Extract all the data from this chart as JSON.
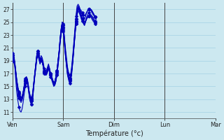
{
  "xlabel": "Température (°c)",
  "bg_color": "#cce8f0",
  "line_color": "#0000bb",
  "markersize": 2.5,
  "linewidth": 0.8,
  "ylim": [
    10,
    28
  ],
  "yticks": [
    11,
    13,
    15,
    17,
    19,
    21,
    23,
    25,
    27
  ],
  "day_labels": [
    "Ven",
    "Sam",
    "Dim",
    "Lun",
    "Mar"
  ],
  "day_positions": [
    0,
    48,
    96,
    144,
    192
  ],
  "grid_color": "#99cce0",
  "vline_color": "#444444",
  "n_points": 240,
  "series": [
    [
      19.5,
      19.3,
      18.8,
      17.5,
      16.0,
      15.0,
      14.2,
      13.5,
      13.2,
      13.5,
      14.0,
      15.0,
      16.0,
      16.5,
      16.0,
      15.0,
      14.0,
      13.5,
      13.2,
      14.0,
      15.5,
      17.0,
      18.5,
      20.0,
      20.5,
      19.8,
      19.0,
      19.5,
      19.0,
      18.5,
      17.5,
      17.0,
      17.0,
      17.5,
      18.0,
      17.5,
      17.0,
      16.5,
      16.0,
      15.5,
      15.5,
      16.0,
      17.0,
      18.5,
      20.0,
      22.0,
      23.5,
      24.5,
      24.0,
      22.0,
      20.0,
      18.5,
      17.0,
      16.5,
      16.0,
      16.2,
      17.5,
      19.0,
      21.0,
      23.0,
      25.0,
      26.5,
      27.2,
      27.0,
      26.5,
      26.0,
      25.5,
      25.0,
      24.8,
      25.2,
      25.8,
      26.2,
      26.5,
      26.8,
      27.0,
      26.8,
      26.5,
      26.2,
      25.8,
      25.5
    ],
    [
      19.2,
      19.0,
      18.5,
      17.2,
      15.8,
      14.8,
      14.0,
      13.2,
      12.8,
      13.0,
      13.8,
      14.8,
      15.8,
      16.2,
      15.8,
      14.8,
      13.8,
      13.2,
      12.8,
      13.5,
      15.0,
      16.8,
      18.2,
      19.8,
      20.2,
      19.5,
      18.8,
      19.2,
      18.8,
      18.2,
      17.2,
      16.8,
      16.8,
      17.2,
      17.8,
      17.2,
      16.8,
      16.2,
      15.8,
      15.2,
      15.2,
      15.8,
      16.8,
      18.2,
      19.8,
      21.8,
      23.2,
      24.2,
      23.8,
      21.8,
      19.8,
      18.2,
      16.8,
      16.2,
      15.8,
      16.0,
      17.2,
      18.8,
      20.8,
      22.8,
      24.8,
      26.2,
      27.0,
      26.8,
      26.2,
      25.8,
      25.2,
      24.8,
      24.5,
      25.0,
      25.5,
      25.8,
      26.0,
      26.2,
      26.2,
      26.0,
      25.8,
      25.5,
      25.2,
      25.0
    ],
    [
      20.0,
      19.8,
      18.5,
      16.0,
      14.0,
      12.8,
      11.8,
      11.2,
      11.0,
      11.5,
      12.5,
      13.8,
      15.0,
      15.8,
      15.5,
      14.5,
      13.2,
      12.5,
      12.2,
      13.0,
      14.8,
      16.5,
      18.0,
      19.5,
      20.0,
      19.2,
      18.5,
      19.0,
      18.8,
      18.2,
      17.2,
      17.0,
      17.0,
      17.5,
      18.0,
      17.5,
      17.0,
      16.5,
      16.0,
      15.5,
      15.8,
      16.5,
      17.5,
      19.0,
      20.5,
      22.5,
      24.0,
      25.0,
      24.5,
      22.5,
      20.5,
      19.0,
      17.5,
      16.8,
      16.2,
      16.5,
      17.8,
      19.5,
      21.5,
      23.5,
      25.5,
      27.0,
      27.5,
      27.2,
      26.8,
      26.5,
      26.2,
      25.8,
      25.5,
      26.0,
      26.5,
      26.8,
      27.0,
      27.2,
      27.0,
      26.8,
      26.5,
      26.2,
      25.8,
      25.5
    ],
    [
      19.8,
      19.5,
      18.8,
      17.2,
      15.5,
      14.2,
      13.5,
      13.0,
      12.8,
      13.2,
      14.0,
      15.0,
      15.8,
      16.2,
      15.8,
      14.8,
      13.5,
      13.0,
      12.8,
      13.5,
      15.2,
      16.8,
      18.2,
      19.8,
      20.2,
      19.5,
      18.8,
      19.2,
      18.8,
      18.2,
      17.2,
      16.8,
      17.0,
      17.5,
      18.0,
      17.5,
      16.8,
      16.2,
      15.8,
      15.2,
      15.5,
      16.2,
      17.2,
      18.8,
      20.2,
      22.2,
      23.8,
      24.8,
      24.2,
      22.2,
      20.2,
      18.8,
      17.2,
      16.5,
      16.0,
      16.2,
      17.5,
      19.2,
      21.2,
      23.2,
      25.2,
      26.8,
      27.2,
      27.0,
      26.5,
      26.0,
      25.5,
      25.0,
      24.8,
      25.2,
      25.5,
      25.8,
      26.0,
      26.2,
      26.0,
      25.8,
      25.5,
      25.2,
      25.0,
      24.8
    ],
    [
      19.0,
      18.8,
      18.2,
      16.8,
      15.2,
      14.0,
      13.2,
      12.8,
      12.5,
      12.8,
      13.5,
      14.5,
      15.5,
      16.0,
      15.5,
      14.5,
      13.2,
      12.5,
      12.2,
      13.0,
      14.8,
      16.5,
      17.8,
      19.2,
      19.8,
      19.2,
      18.5,
      19.0,
      18.8,
      18.0,
      17.0,
      16.8,
      16.8,
      17.2,
      17.8,
      17.2,
      16.5,
      16.0,
      15.5,
      15.0,
      15.2,
      15.8,
      16.8,
      18.2,
      19.8,
      21.8,
      23.2,
      24.2,
      23.5,
      21.5,
      19.8,
      18.2,
      16.8,
      16.0,
      15.5,
      15.8,
      17.0,
      18.8,
      20.8,
      22.8,
      24.8,
      26.0,
      26.8,
      26.5,
      26.0,
      25.5,
      25.2,
      24.8,
      24.5,
      25.0,
      25.5,
      25.8,
      26.0,
      26.0,
      25.8,
      25.5,
      25.2,
      25.0,
      24.8,
      24.5
    ],
    [
      20.2,
      20.0,
      19.0,
      17.5,
      16.0,
      14.8,
      14.0,
      13.5,
      13.2,
      13.5,
      14.2,
      15.2,
      16.2,
      16.5,
      16.2,
      15.2,
      13.8,
      13.2,
      13.0,
      13.8,
      15.5,
      17.0,
      18.5,
      20.0,
      20.5,
      19.8,
      19.2,
      19.8,
      19.5,
      18.8,
      17.8,
      17.5,
      17.5,
      18.0,
      18.5,
      17.8,
      17.0,
      16.5,
      16.0,
      15.5,
      15.8,
      16.5,
      17.5,
      19.0,
      20.5,
      22.5,
      24.0,
      25.0,
      24.8,
      22.8,
      21.0,
      19.5,
      18.0,
      17.2,
      16.8,
      17.0,
      18.2,
      20.0,
      22.0,
      24.0,
      26.0,
      27.5,
      27.8,
      27.5,
      27.0,
      26.8,
      26.5,
      26.2,
      26.0,
      26.2,
      26.5,
      26.8,
      27.0,
      27.0,
      26.8,
      26.5,
      26.2,
      26.0,
      25.8,
      25.5
    ],
    [
      19.5,
      19.2,
      18.5,
      17.0,
      15.5,
      14.2,
      13.5,
      13.0,
      12.8,
      13.2,
      14.0,
      15.0,
      15.8,
      16.2,
      15.8,
      14.8,
      13.5,
      13.0,
      12.8,
      13.5,
      15.2,
      16.8,
      18.2,
      19.8,
      20.2,
      19.5,
      18.8,
      19.2,
      18.8,
      18.2,
      17.2,
      16.8,
      17.0,
      17.5,
      18.0,
      17.5,
      16.8,
      16.2,
      15.8,
      15.2,
      15.5,
      16.2,
      17.2,
      18.8,
      20.2,
      22.2,
      23.8,
      24.8,
      24.2,
      22.2,
      20.2,
      18.8,
      17.2,
      16.5,
      16.0,
      16.2,
      17.5,
      19.2,
      21.2,
      23.2,
      25.2,
      26.8,
      27.2,
      27.0,
      26.5,
      26.0,
      25.5,
      25.0,
      24.8,
      25.2,
      25.5,
      25.8,
      26.0,
      26.2,
      26.0,
      25.8,
      25.5,
      25.2,
      25.0,
      24.8
    ],
    [
      19.8,
      19.5,
      18.8,
      17.2,
      15.8,
      14.5,
      13.8,
      13.2,
      13.0,
      13.2,
      14.0,
      15.0,
      16.0,
      16.5,
      16.0,
      15.0,
      13.8,
      13.2,
      13.0,
      13.8,
      15.5,
      17.0,
      18.5,
      20.0,
      20.5,
      19.8,
      19.2,
      19.5,
      19.2,
      18.5,
      17.5,
      17.2,
      17.2,
      17.8,
      18.2,
      17.8,
      17.0,
      16.5,
      16.0,
      15.5,
      15.8,
      16.5,
      17.5,
      19.0,
      20.5,
      22.5,
      24.0,
      25.0,
      24.5,
      22.5,
      20.5,
      19.0,
      17.5,
      16.8,
      16.2,
      16.5,
      17.8,
      19.5,
      21.5,
      23.5,
      25.5,
      27.0,
      27.5,
      27.2,
      26.8,
      26.5,
      26.2,
      25.8,
      25.5,
      26.0,
      26.5,
      26.8,
      27.0,
      27.2,
      27.0,
      26.8,
      26.5,
      26.2,
      25.8,
      25.5
    ]
  ]
}
